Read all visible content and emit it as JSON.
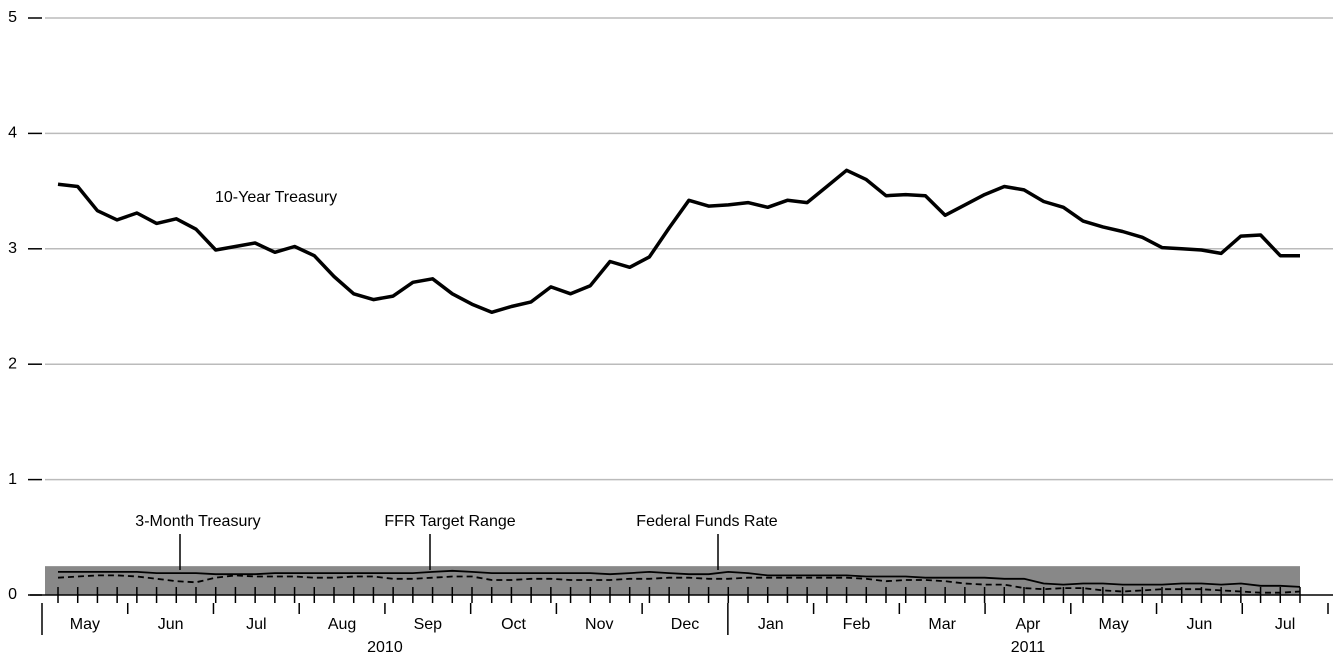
{
  "chart_data": {
    "type": "line",
    "ylim": [
      0,
      5
    ],
    "yticks": [
      0,
      1,
      2,
      3,
      4,
      5
    ],
    "grid": true,
    "months": [
      "May",
      "Jun",
      "Jul",
      "Aug",
      "Sep",
      "Oct",
      "Nov",
      "Dec",
      "Jan",
      "Feb",
      "Mar",
      "Apr",
      "May",
      "Jun",
      "Jul"
    ],
    "years": [
      "2010",
      "2011"
    ],
    "target_range": {
      "name": "FFR Target Range",
      "low": 0,
      "high": 0.25,
      "color": "#888888"
    },
    "series": [
      {
        "name": "10-Year Treasury",
        "color": "#000000",
        "dash": false,
        "values": [
          3.56,
          3.54,
          3.33,
          3.25,
          3.31,
          3.22,
          3.26,
          3.17,
          2.99,
          3.02,
          3.05,
          2.97,
          3.02,
          2.94,
          2.76,
          2.61,
          2.56,
          2.59,
          2.71,
          2.74,
          2.61,
          2.52,
          2.45,
          2.5,
          2.54,
          2.67,
          2.61,
          2.68,
          2.89,
          2.84,
          2.93,
          3.18,
          3.42,
          3.37,
          3.38,
          3.4,
          3.36,
          3.42,
          3.4,
          3.54,
          3.68,
          3.6,
          3.46,
          3.47,
          3.46,
          3.29,
          3.38,
          3.47,
          3.54,
          3.51,
          3.41,
          3.36,
          3.24,
          3.19,
          3.15,
          3.1,
          3.01,
          3.0,
          2.99,
          2.96,
          3.11,
          3.12,
          2.94,
          2.94
        ]
      },
      {
        "name": "3-Month Treasury",
        "color": "#000000",
        "dash": true,
        "values": [
          0.15,
          0.16,
          0.17,
          0.17,
          0.16,
          0.14,
          0.12,
          0.11,
          0.15,
          0.17,
          0.16,
          0.16,
          0.16,
          0.15,
          0.15,
          0.16,
          0.16,
          0.14,
          0.14,
          0.15,
          0.16,
          0.16,
          0.13,
          0.13,
          0.14,
          0.14,
          0.13,
          0.13,
          0.13,
          0.14,
          0.14,
          0.15,
          0.15,
          0.14,
          0.14,
          0.15,
          0.15,
          0.15,
          0.15,
          0.15,
          0.15,
          0.14,
          0.12,
          0.13,
          0.13,
          0.12,
          0.1,
          0.09,
          0.09,
          0.06,
          0.05,
          0.06,
          0.06,
          0.04,
          0.03,
          0.04,
          0.05,
          0.05,
          0.05,
          0.04,
          0.03,
          0.02,
          0.02,
          0.03
        ]
      },
      {
        "name": "Federal Funds Rate",
        "color": "#000000",
        "dash": false,
        "values": [
          0.2,
          0.2,
          0.2,
          0.2,
          0.2,
          0.19,
          0.19,
          0.19,
          0.18,
          0.18,
          0.18,
          0.19,
          0.19,
          0.19,
          0.19,
          0.19,
          0.19,
          0.19,
          0.19,
          0.2,
          0.21,
          0.2,
          0.19,
          0.19,
          0.19,
          0.19,
          0.19,
          0.19,
          0.18,
          0.19,
          0.2,
          0.19,
          0.18,
          0.18,
          0.2,
          0.19,
          0.17,
          0.17,
          0.17,
          0.17,
          0.17,
          0.16,
          0.16,
          0.16,
          0.15,
          0.15,
          0.15,
          0.15,
          0.14,
          0.14,
          0.1,
          0.09,
          0.1,
          0.1,
          0.09,
          0.09,
          0.09,
          0.1,
          0.1,
          0.09,
          0.1,
          0.08,
          0.08,
          0.07
        ]
      }
    ]
  }
}
